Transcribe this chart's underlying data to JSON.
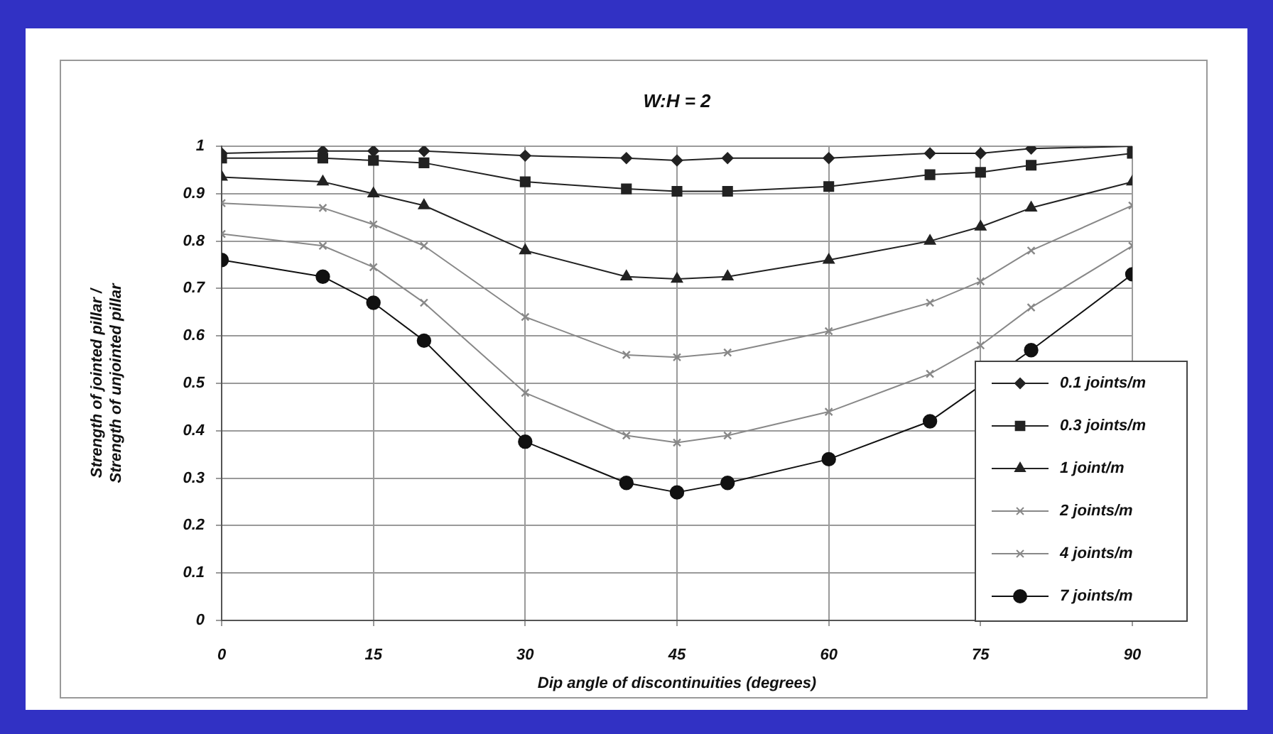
{
  "chart_data": {
    "type": "line",
    "title": "W:H = 2",
    "xlabel": "Dip angle of discontinuities (degrees)",
    "ylabel": "Strength of jointed pillar /\nStrength of unjointed pillar",
    "x": [
      0,
      10,
      15,
      20,
      30,
      40,
      45,
      50,
      60,
      70,
      75,
      80,
      90
    ],
    "xlim": [
      0,
      90
    ],
    "xticks": [
      0,
      15,
      30,
      45,
      60,
      75,
      90
    ],
    "ylim": [
      0,
      1
    ],
    "yticks": [
      0,
      0.1,
      0.2,
      0.3,
      0.4,
      0.5,
      0.6,
      0.7,
      0.8,
      0.9,
      1
    ],
    "grid": true,
    "legend": "bottom right",
    "line_style": "solid",
    "series": [
      {
        "name": "0.1 joints/m",
        "color": "#222222",
        "marker": "diamond",
        "values": [
          0.985,
          0.99,
          0.99,
          0.99,
          0.98,
          0.975,
          0.97,
          0.975,
          0.975,
          0.985,
          0.985,
          0.995,
          1.0
        ]
      },
      {
        "name": "0.3 joints/m",
        "color": "#222222",
        "marker": "square",
        "values": [
          0.975,
          0.975,
          0.97,
          0.965,
          0.925,
          0.91,
          0.905,
          0.905,
          0.915,
          0.94,
          0.945,
          0.96,
          0.985
        ]
      },
      {
        "name": "1 joint/m",
        "color": "#222222",
        "marker": "triangle",
        "values": [
          0.935,
          0.925,
          0.9,
          0.875,
          0.78,
          0.725,
          0.72,
          0.725,
          0.76,
          0.8,
          0.83,
          0.87,
          0.925
        ]
      },
      {
        "name": "2 joints/m",
        "color": "#888888",
        "marker": "cross",
        "values": [
          0.88,
          0.87,
          0.835,
          0.79,
          0.64,
          0.56,
          0.555,
          0.565,
          0.61,
          0.67,
          0.715,
          0.78,
          0.875
        ]
      },
      {
        "name": "4 joints/m",
        "color": "#888888",
        "marker": "cross",
        "values": [
          0.815,
          0.79,
          0.745,
          0.67,
          0.48,
          0.39,
          0.375,
          0.39,
          0.44,
          0.52,
          0.58,
          0.66,
          0.79
        ]
      },
      {
        "name": "7 joints/m",
        "color": "#111111",
        "marker": "circle",
        "values": [
          0.76,
          0.725,
          0.67,
          0.59,
          0.377,
          0.29,
          0.27,
          0.29,
          0.34,
          0.42,
          null,
          0.57,
          0.73
        ]
      }
    ]
  }
}
